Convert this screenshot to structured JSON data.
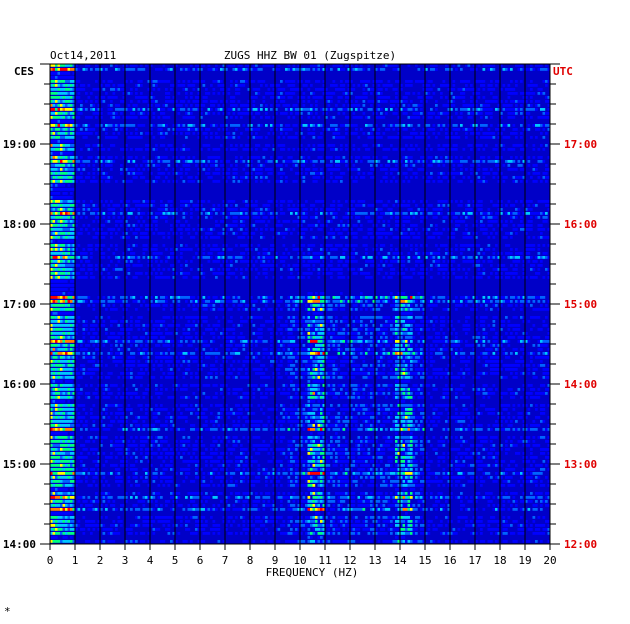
{
  "chart_data": {
    "type": "heatmap",
    "title": "ZUGS HHZ BW 01 (Zugspitze)",
    "date": "Oct14,2011",
    "xlabel": "FREQUENCY (HZ)",
    "xlim": [
      0,
      20
    ],
    "x_ticks": [
      "0",
      "1",
      "2",
      "3",
      "4",
      "5",
      "6",
      "7",
      "8",
      "9",
      "10",
      "11",
      "12",
      "13",
      "14",
      "15",
      "16",
      "17",
      "18",
      "19",
      "20"
    ],
    "left_timezone": "CES",
    "right_timezone": "UTC",
    "left_time_labels": [
      "19:00",
      "18:00",
      "17:00",
      "16:00",
      "15:00",
      "14:00"
    ],
    "right_time_labels": [
      "17:00",
      "16:00",
      "15:00",
      "14:00",
      "13:00",
      "12:00"
    ],
    "time_hours_local": [
      19,
      18,
      17,
      16,
      15,
      14
    ],
    "colormap": [
      "#00008b",
      "#0000ff",
      "#0064ff",
      "#00c8ff",
      "#00ff80",
      "#ffff00",
      "#ff8000",
      "#ff0000"
    ],
    "background_color": "#0000c8",
    "activity_bands": [
      {
        "freq_range": [
          0,
          1
        ],
        "intensity": "high",
        "color": "yellow/red"
      },
      {
        "freq_range": [
          10.3,
          11
        ],
        "intensity": "medium",
        "time_range": [
          "14:00",
          "17:00"
        ]
      },
      {
        "freq_range": [
          13.8,
          14.5
        ],
        "intensity": "medium",
        "time_range": [
          "14:00",
          "17:00"
        ]
      }
    ]
  },
  "footer_mark": "*"
}
